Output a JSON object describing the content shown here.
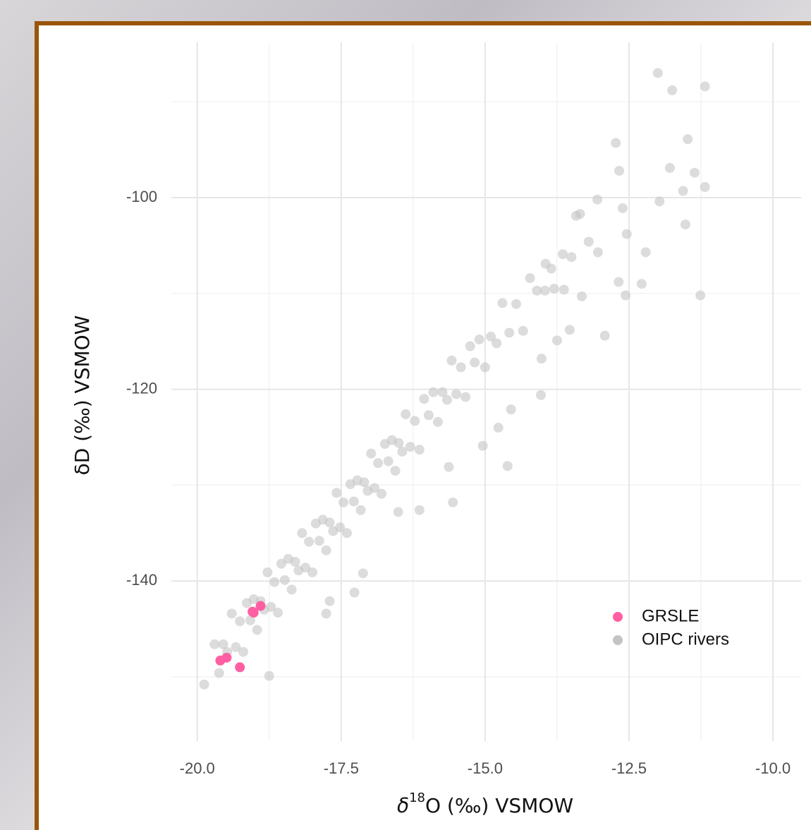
{
  "chart_data": {
    "type": "scatter",
    "x_label": [
      "δ",
      "18",
      "O (‰) VSMOW"
    ],
    "y_label": "δD (‰) VSMOW",
    "xlim": [
      -20.45,
      -9.51
    ],
    "ylim": [
      -156.7,
      -83.8
    ],
    "xticks": [
      {
        "value": -20,
        "label": "-20.0"
      },
      -17.5,
      {
        "value": -15,
        "label": "-15.0"
      },
      -12.5,
      {
        "value": -10,
        "label": "-10.0"
      }
    ],
    "yticks": [
      -100,
      -120,
      -140
    ],
    "x_minor_grid": [
      -18.75,
      -16.25,
      -13.75,
      -11.25
    ],
    "y_minor_grid": [
      -90,
      -110,
      -130,
      -150
    ],
    "grid": true,
    "legend_position": "bottom-right",
    "series": [
      {
        "name": "GRSLE",
        "color": "#ff5fa2",
        "x": [
          -19.02,
          -18.9,
          -19.6,
          -19.49,
          -19.26,
          -19.04
        ],
        "y": [
          -143.3,
          -142.6,
          -148.3,
          -148.0,
          -149.0,
          -143.2
        ]
      },
      {
        "name": "OIPC rivers",
        "color": "#c4c4c4",
        "x": [
          -12.0,
          -11.75,
          -11.18,
          -11.48,
          -12.73,
          -11.79,
          -11.36,
          -11.18,
          -12.67,
          -11.56,
          -11.97,
          -11.52,
          -12.61,
          -13.05,
          -12.54,
          -13.42,
          -12.21,
          -13.04,
          -13.85,
          -12.28,
          -12.68,
          -11.26,
          -12.56,
          -12.92,
          -13.96,
          -13.63,
          -13.32,
          -13.53,
          -13.75,
          -14.02,
          -14.03,
          -14.55,
          -14.77,
          -15.04,
          -14.61,
          -15.63,
          -15.56,
          -16.14,
          -16.51,
          -17.27,
          -17.12,
          -17.7,
          -17.76,
          -18.75,
          -19.88,
          -19.7,
          -19.62,
          -19.55,
          -19.48,
          -19.4,
          -19.33,
          -19.26,
          -19.2,
          -19.14,
          -19.08,
          -19.02,
          -18.96,
          -18.9,
          -18.84,
          -18.78,
          -18.72,
          -18.66,
          -18.6,
          -18.54,
          -18.48,
          -18.42,
          -18.36,
          -18.3,
          -18.24,
          -18.18,
          -18.12,
          -18.06,
          -18.0,
          -17.94,
          -17.88,
          -17.82,
          -17.76,
          -17.7,
          -17.64,
          -17.58,
          -17.52,
          -17.46,
          -17.4,
          -17.34,
          -17.28,
          -17.22,
          -17.16,
          -17.1,
          -17.04,
          -16.98,
          -16.92,
          -16.86,
          -16.8,
          -16.74,
          -16.68,
          -16.62,
          -16.56,
          -16.5,
          -16.44,
          -16.38,
          -16.3,
          -16.22,
          -16.14,
          -16.06,
          -15.98,
          -15.9,
          -15.82,
          -15.74,
          -15.66,
          -15.58,
          -15.5,
          -15.42,
          -15.34,
          -15.26,
          -15.18,
          -15.1,
          -15.0,
          -14.9,
          -14.8,
          -14.7,
          -14.58,
          -14.46,
          -14.34,
          -14.22,
          -14.1,
          -13.95,
          -13.8,
          -13.65,
          -13.5,
          -13.35,
          -13.2
        ],
        "y": [
          -87.0,
          -88.8,
          -88.4,
          -93.9,
          -94.3,
          -96.9,
          -97.4,
          -98.9,
          -97.2,
          -99.3,
          -100.4,
          -102.8,
          -101.1,
          -100.2,
          -103.8,
          -101.9,
          -105.7,
          -105.7,
          -107.4,
          -109.0,
          -108.8,
          -110.2,
          -110.2,
          -114.4,
          -109.7,
          -109.6,
          -110.3,
          -113.8,
          -114.9,
          -116.8,
          -120.6,
          -122.1,
          -124.0,
          -125.9,
          -128.0,
          -128.1,
          -131.8,
          -132.6,
          -132.8,
          -141.2,
          -139.2,
          -142.1,
          -143.4,
          -149.9,
          -150.8,
          -146.6,
          -149.6,
          -146.6,
          -147.4,
          -143.4,
          -146.9,
          -144.2,
          -147.4,
          -142.3,
          -144.1,
          -141.9,
          -145.1,
          -142.1,
          -143.0,
          -139.1,
          -142.7,
          -140.1,
          -143.3,
          -138.2,
          -139.9,
          -137.7,
          -140.9,
          -138.0,
          -138.9,
          -135.0,
          -138.6,
          -135.9,
          -139.1,
          -134.0,
          -135.8,
          -133.6,
          -136.8,
          -133.9,
          -134.8,
          -130.8,
          -134.4,
          -131.8,
          -135.0,
          -129.9,
          -131.7,
          -129.5,
          -132.6,
          -129.7,
          -130.6,
          -126.7,
          -130.3,
          -127.7,
          -130.9,
          -125.7,
          -127.5,
          -125.3,
          -128.5,
          -125.6,
          -126.5,
          -122.6,
          -126.0,
          -123.3,
          -126.3,
          -121.0,
          -122.7,
          -120.3,
          -123.4,
          -120.3,
          -121.1,
          -117.0,
          -120.5,
          -117.7,
          -120.8,
          -115.5,
          -117.2,
          -114.8,
          -117.7,
          -114.5,
          -115.2,
          -111.0,
          -114.1,
          -111.1,
          -113.9,
          -108.4,
          -109.7,
          -106.9,
          -109.5,
          -105.9,
          -106.2,
          -101.7,
          -104.6
        ]
      }
    ]
  }
}
